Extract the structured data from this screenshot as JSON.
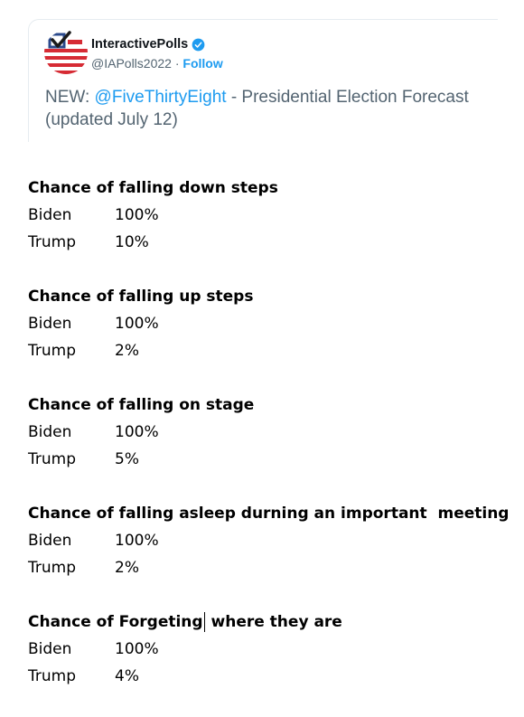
{
  "tweet": {
    "display_name": "InteractivePolls",
    "handle": "@IAPolls2022",
    "separator": " · ",
    "follow_label": "Follow",
    "text_prefix": "NEW: ",
    "mention": "@FiveThirtyEight",
    "text_suffix": " - Presidential Election Forecast (updated July 12)",
    "avatar_icon": "check-flag-icon",
    "verified_icon": "verified-badge-icon",
    "colors": {
      "accent": "#1d9bf0",
      "flag_red": "#d62b34",
      "flag_blue": "#2b4a8c"
    }
  },
  "sections": [
    {
      "title": "Chance of falling down steps",
      "rows": [
        {
          "name": "Biden",
          "value": "100%"
        },
        {
          "name": "Trump",
          "value": "10%"
        }
      ]
    },
    {
      "title": "Chance of falling up steps",
      "rows": [
        {
          "name": "Biden",
          "value": "100%"
        },
        {
          "name": "Trump",
          "value": "2%"
        }
      ]
    },
    {
      "title": "Chance of falling on stage",
      "rows": [
        {
          "name": "Biden",
          "value": "100%"
        },
        {
          "name": "Trump",
          "value": "5%"
        }
      ]
    },
    {
      "title": "Chance of falling asleep durning an important  meeting",
      "rows": [
        {
          "name": "Biden",
          "value": "100%"
        },
        {
          "name": "Trump",
          "value": "2%"
        }
      ]
    },
    {
      "title_before_caret": "Chance of Forgeting",
      "title_after_caret": " where they are",
      "rows": [
        {
          "name": "Biden",
          "value": "100%"
        },
        {
          "name": "Trump",
          "value": "4%"
        }
      ]
    }
  ]
}
